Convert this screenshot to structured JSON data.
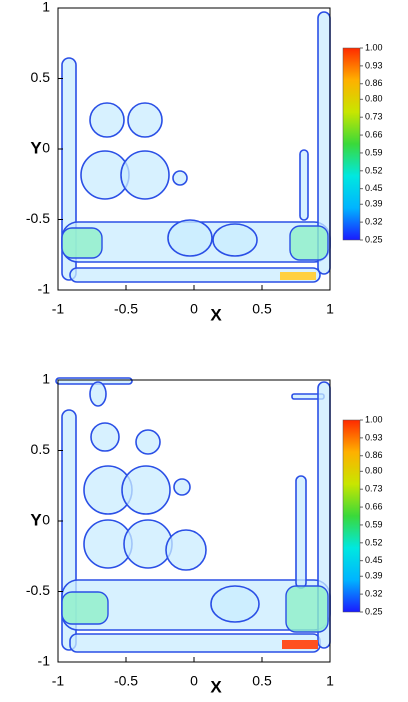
{
  "chart_data": [
    {
      "type": "contour",
      "xlabel": "X",
      "ylabel": "Y",
      "xlim": [
        -1,
        1
      ],
      "ylim": [
        -1,
        1
      ],
      "xticks": [
        -1,
        -0.5,
        0,
        0.5,
        1
      ],
      "yticks": [
        -1,
        -0.5,
        0,
        0.5,
        1
      ],
      "colorbar": {
        "clim": [
          0.25,
          1.0
        ],
        "colormap": [
          "#1a1aff",
          "#00b4ff",
          "#00e8e0",
          "#3ad93a",
          "#c8e600",
          "#ffb000",
          "#ff2a00"
        ],
        "ticks": [
          {
            "value": 1.0,
            "label": "1.00"
          },
          {
            "value": 0.93,
            "label": "0.93"
          },
          {
            "value": 0.86,
            "label": "0.86"
          },
          {
            "value": 0.8,
            "label": "0.80"
          },
          {
            "value": 0.73,
            "label": "0.73"
          },
          {
            "value": 0.66,
            "label": "0.66"
          },
          {
            "value": 0.59,
            "label": "0.59"
          },
          {
            "value": 0.52,
            "label": "0.52"
          },
          {
            "value": 0.45,
            "label": "0.45"
          },
          {
            "value": 0.39,
            "label": "0.39"
          },
          {
            "value": 0.32,
            "label": "0.32"
          },
          {
            "value": 0.25,
            "label": "0.25"
          }
        ]
      }
    },
    {
      "type": "contour",
      "xlabel": "X",
      "ylabel": "Y",
      "xlim": [
        -1,
        1
      ],
      "ylim": [
        -1,
        1
      ],
      "xticks": [
        -1,
        -0.5,
        0,
        0.5,
        1
      ],
      "yticks": [
        -1,
        -0.5,
        0,
        0.5,
        1
      ],
      "colorbar": {
        "clim": [
          0.25,
          1.0
        ],
        "colormap": [
          "#1a1aff",
          "#00b4ff",
          "#00e8e0",
          "#3ad93a",
          "#c8e600",
          "#ffb000",
          "#ff2a00"
        ],
        "ticks": [
          {
            "value": 1.0,
            "label": "1.00"
          },
          {
            "value": 0.93,
            "label": "0.93"
          },
          {
            "value": 0.86,
            "label": "0.86"
          },
          {
            "value": 0.8,
            "label": "0.80"
          },
          {
            "value": 0.73,
            "label": "0.73"
          },
          {
            "value": 0.66,
            "label": "0.66"
          },
          {
            "value": 0.59,
            "label": "0.59"
          },
          {
            "value": 0.52,
            "label": "0.52"
          },
          {
            "value": 0.45,
            "label": "0.45"
          },
          {
            "value": 0.39,
            "label": "0.39"
          },
          {
            "value": 0.32,
            "label": "0.32"
          },
          {
            "value": 0.25,
            "label": "0.25"
          }
        ]
      }
    }
  ]
}
